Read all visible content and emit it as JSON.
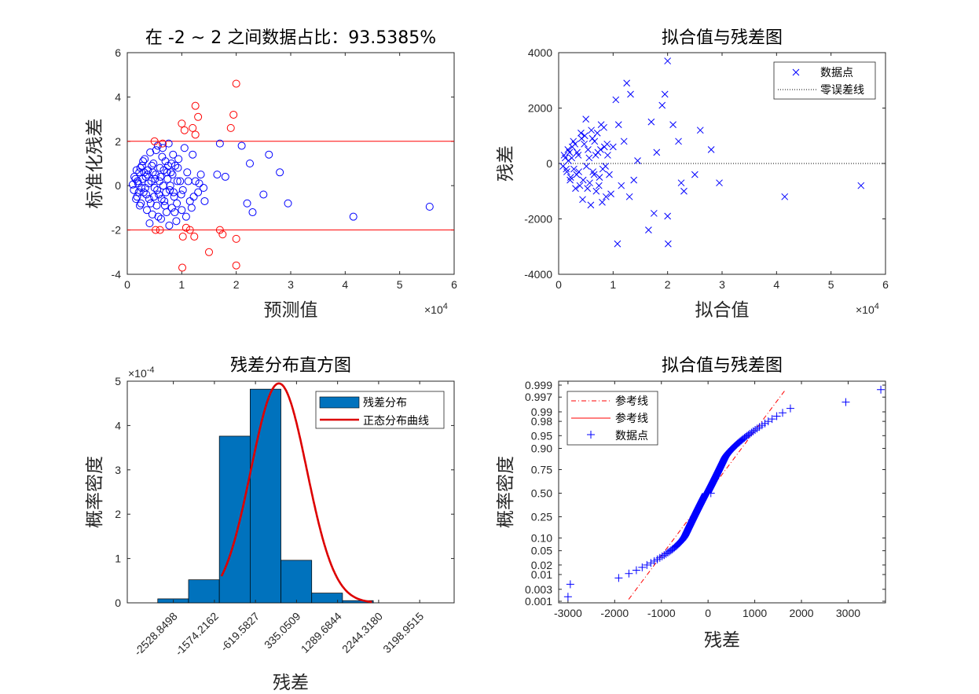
{
  "figure": {
    "background": "#ffffff",
    "axes_color": "#262626"
  },
  "chart_data": [
    {
      "id": "std_residual",
      "type": "scatter",
      "title": "在 -2 ~ 2 之间数据占比：93.5385%",
      "xlabel": "预测值",
      "ylabel": "标准化残差",
      "x_exponent": "×10^4",
      "xlim": [
        0,
        60000
      ],
      "ylim": [
        -4,
        6
      ],
      "xticks": [
        0,
        1,
        2,
        3,
        4,
        5,
        6
      ],
      "yticks": [
        -4,
        -2,
        0,
        2,
        4,
        6
      ],
      "reference_lines": [
        {
          "y": 2,
          "color": "#ff0000"
        },
        {
          "y": -2,
          "color": "#ff0000"
        }
      ],
      "series": [
        {
          "color": "#0000ff",
          "marker": "circle",
          "points": [
            [
              1200,
              -0.2
            ],
            [
              1500,
              0.3
            ],
            [
              1800,
              -0.5
            ],
            [
              2000,
              0.1
            ],
            [
              2200,
              0.6
            ],
            [
              2500,
              -0.8
            ],
            [
              2700,
              0.9
            ],
            [
              3000,
              -0.3
            ],
            [
              3200,
              1.2
            ],
            [
              3400,
              0.4
            ],
            [
              3600,
              -1.1
            ],
            [
              3800,
              0.7
            ],
            [
              4000,
              -0.6
            ],
            [
              4200,
              1.5
            ],
            [
              4400,
              0.2
            ],
            [
              4600,
              -1.3
            ],
            [
              4800,
              1.0
            ],
            [
              5000,
              -0.1
            ],
            [
              5200,
              0.5
            ],
            [
              5400,
              -0.9
            ],
            [
              5600,
              1.8
            ],
            [
              5800,
              -0.4
            ],
            [
              6000,
              0.8
            ],
            [
              6200,
              -1.5
            ],
            [
              6400,
              1.3
            ],
            [
              6600,
              0.0
            ],
            [
              6800,
              -0.7
            ],
            [
              7000,
              1.1
            ],
            [
              7200,
              -1.2
            ],
            [
              7400,
              0.3
            ],
            [
              7600,
              1.9
            ],
            [
              7800,
              -0.2
            ],
            [
              8000,
              0.6
            ],
            [
              8200,
              -1.0
            ],
            [
              8400,
              1.4
            ],
            [
              8600,
              -0.5
            ],
            [
              8800,
              0.9
            ],
            [
              9000,
              -1.6
            ],
            [
              9200,
              0.2
            ],
            [
              9400,
              1.2
            ],
            [
              1700,
              0.7
            ],
            [
              2300,
              -0.9
            ],
            [
              2900,
              1.1
            ],
            [
              3300,
              -0.1
            ],
            [
              3700,
              0.5
            ],
            [
              4100,
              -1.7
            ],
            [
              4500,
              0.9
            ],
            [
              4900,
              -0.5
            ],
            [
              5300,
              1.6
            ],
            [
              5700,
              -1.4
            ],
            [
              6100,
              0.4
            ],
            [
              6500,
              1.7
            ],
            [
              6900,
              -0.9
            ],
            [
              7300,
              0.6
            ],
            [
              7700,
              -1.8
            ],
            [
              8100,
              1.0
            ],
            [
              8500,
              -0.3
            ],
            [
              9100,
              -0.8
            ],
            [
              9700,
              0.2
            ],
            [
              10000,
              -1.1
            ],
            [
              10500,
              1.7
            ],
            [
              10800,
              -1.4
            ],
            [
              11000,
              0.6
            ],
            [
              11500,
              -0.7
            ],
            [
              12000,
              1.4
            ],
            [
              12500,
              0.2
            ],
            [
              13000,
              -0.3
            ],
            [
              13500,
              0.5
            ],
            [
              14000,
              -0.1
            ],
            [
              14200,
              -0.7
            ],
            [
              16500,
              0.5
            ],
            [
              17000,
              1.9
            ],
            [
              18000,
              0.4
            ],
            [
              21000,
              1.8
            ],
            [
              22000,
              -0.8
            ],
            [
              22500,
              1.0
            ],
            [
              23000,
              -1.2
            ],
            [
              25000,
              -0.4
            ],
            [
              26000,
              1.4
            ],
            [
              28000,
              0.6
            ],
            [
              29500,
              -0.8
            ],
            [
              41500,
              -1.4
            ],
            [
              55500,
              -0.95
            ],
            [
              1000,
              0.05
            ],
            [
              1300,
              0.4
            ],
            [
              1600,
              -0.6
            ],
            [
              1900,
              0.2
            ],
            [
              2100,
              -0.3
            ],
            [
              2400,
              0.8
            ],
            [
              2600,
              -0.1
            ],
            [
              2800,
              0.3
            ],
            [
              3100,
              0.6
            ],
            [
              3500,
              -0.4
            ],
            [
              3900,
              0.1
            ],
            [
              4300,
              -0.8
            ],
            [
              4700,
              0.6
            ],
            [
              5100,
              0.3
            ],
            [
              5500,
              -0.2
            ],
            [
              5900,
              0.2
            ],
            [
              6300,
              -0.6
            ],
            [
              6700,
              0.7
            ],
            [
              7100,
              -0.3
            ],
            [
              7500,
              0.9
            ],
            [
              7900,
              0.0
            ],
            [
              8300,
              0.5
            ],
            [
              8700,
              -1.2
            ],
            [
              9300,
              0.8
            ],
            [
              9900,
              -0.4
            ],
            [
              11200,
              0.2
            ],
            [
              12200,
              -0.5
            ],
            [
              13200,
              0.1
            ],
            [
              10200,
              -0.2
            ],
            [
              11800,
              -1.0
            ]
          ]
        },
        {
          "color": "#ff0000",
          "marker": "circle",
          "points": [
            [
              5000,
              2.0
            ],
            [
              5200,
              -2.0
            ],
            [
              6000,
              -2.0
            ],
            [
              6500,
              1.9
            ],
            [
              10000,
              2.8
            ],
            [
              10500,
              2.5
            ],
            [
              10100,
              -3.7
            ],
            [
              10200,
              -2.3
            ],
            [
              10800,
              -1.9
            ],
            [
              11500,
              -2.0
            ],
            [
              12000,
              2.6
            ],
            [
              12500,
              3.6
            ],
            [
              12500,
              2.3
            ],
            [
              13000,
              3.1
            ],
            [
              12300,
              -2.3
            ],
            [
              15000,
              -3.0
            ],
            [
              17000,
              -2.0
            ],
            [
              17500,
              -2.2
            ],
            [
              19000,
              2.6
            ],
            [
              19500,
              3.2
            ],
            [
              20000,
              4.6
            ],
            [
              20000,
              -2.4
            ],
            [
              20000,
              -3.6
            ]
          ]
        }
      ]
    },
    {
      "id": "fit_vs_resid",
      "type": "scatter",
      "title": "拟合值与残差图",
      "xlabel": "拟合值",
      "ylabel": "残差",
      "x_exponent": "×10^4",
      "xlim": [
        0,
        60000
      ],
      "ylim": [
        -4000,
        4000
      ],
      "xticks": [
        0,
        1,
        2,
        3,
        4,
        5,
        6
      ],
      "yticks": [
        -4000,
        -2000,
        0,
        2000,
        4000
      ],
      "legend": {
        "position": "top-right",
        "entries": [
          "数据点",
          "零误差线"
        ]
      },
      "series": [
        {
          "name": "数据点",
          "color": "#0000ff",
          "marker": "x",
          "points": [
            [
              800,
              -100
            ],
            [
              1200,
              200
            ],
            [
              1500,
              -300
            ],
            [
              1800,
              100
            ],
            [
              2000,
              400
            ],
            [
              2200,
              -500
            ],
            [
              2500,
              600
            ],
            [
              2800,
              -200
            ],
            [
              3000,
              700
            ],
            [
              3300,
              -400
            ],
            [
              3600,
              300
            ],
            [
              3900,
              -800
            ],
            [
              4200,
              900
            ],
            [
              4500,
              -600
            ],
            [
              4800,
              1000
            ],
            [
              5100,
              -100
            ],
            [
              5400,
              500
            ],
            [
              5700,
              -700
            ],
            [
              6000,
              1200
            ],
            [
              6300,
              -300
            ],
            [
              6600,
              800
            ],
            [
              6900,
              -1000
            ],
            [
              7200,
              400
            ],
            [
              7500,
              -500
            ],
            [
              7800,
              1400
            ],
            [
              8100,
              -200
            ],
            [
              8400,
              600
            ],
            [
              8700,
              -1200
            ],
            [
              9000,
              300
            ],
            [
              9300,
              -400
            ],
            [
              1000,
              300
            ],
            [
              1400,
              -200
            ],
            [
              1700,
              500
            ],
            [
              2100,
              -600
            ],
            [
              2400,
              200
            ],
            [
              2700,
              800
            ],
            [
              3100,
              -900
            ],
            [
              3400,
              400
            ],
            [
              3700,
              -300
            ],
            [
              4100,
              1100
            ],
            [
              4400,
              -1300
            ],
            [
              4700,
              700
            ],
            [
              5000,
              1600
            ],
            [
              5300,
              -900
            ],
            [
              5600,
              200
            ],
            [
              5900,
              -1500
            ],
            [
              6200,
              900
            ],
            [
              6500,
              -400
            ],
            [
              6800,
              300
            ],
            [
              7100,
              1100
            ],
            [
              7400,
              -800
            ],
            [
              7700,
              500
            ],
            [
              8000,
              -1400
            ],
            [
              8300,
              1300
            ],
            [
              8600,
              -100
            ],
            [
              8900,
              700
            ],
            [
              9600,
              -1100
            ],
            [
              10000,
              600
            ],
            [
              10500,
              2300
            ],
            [
              10800,
              -2900
            ],
            [
              11000,
              1400
            ],
            [
              11500,
              -800
            ],
            [
              12000,
              800
            ],
            [
              12500,
              2900
            ],
            [
              13000,
              -1200
            ],
            [
              13200,
              2500
            ],
            [
              13800,
              -600
            ],
            [
              14500,
              100
            ],
            [
              16500,
              -2400
            ],
            [
              17000,
              1500
            ],
            [
              17500,
              -1800
            ],
            [
              18000,
              400
            ],
            [
              19000,
              2100
            ],
            [
              19500,
              2500
            ],
            [
              20000,
              3700
            ],
            [
              20000,
              -1900
            ],
            [
              20100,
              -2900
            ],
            [
              21000,
              1400
            ],
            [
              22000,
              800
            ],
            [
              22500,
              -700
            ],
            [
              23000,
              -1000
            ],
            [
              25000,
              -400
            ],
            [
              26000,
              1200
            ],
            [
              28000,
              500
            ],
            [
              29500,
              -700
            ],
            [
              41500,
              -1200
            ],
            [
              55500,
              -800
            ]
          ]
        }
      ],
      "reference_lines": [
        {
          "y": 0,
          "style": "dotted",
          "color": "#000000"
        }
      ]
    },
    {
      "id": "histogram",
      "type": "bar",
      "title": "残差分布直方图",
      "xlabel": "残差",
      "ylabel": "概率密度",
      "y_exponent": "×10^-4",
      "xlim": [
        -3600,
        4000
      ],
      "ylim": [
        0,
        5
      ],
      "yticks": [
        0,
        1,
        2,
        3,
        4,
        5
      ],
      "xticks": [
        -2528.8498,
        -1574.2162,
        -619.5827,
        335.0509,
        1289.6844,
        2244.318,
        3198.9515
      ],
      "xtick_labels": [
        "-2528.8498",
        "-1574.2162",
        "-619.5827",
        "335.0509",
        "1289.6844",
        "2244.3180",
        "3198.9515"
      ],
      "bin_width": 715.97,
      "bins": [
        {
          "center": -2813.5,
          "value": 0.09
        },
        {
          "center": -2097.6,
          "value": 0.52
        },
        {
          "center": -1381.6,
          "value": 3.76
        },
        {
          "center": -665.6,
          "value": 4.82
        },
        {
          "center": 50.4,
          "value": 0.96
        },
        {
          "center": 766.4,
          "value": 0.22
        },
        {
          "center": 1482.3,
          "value": 0.05
        }
      ],
      "bins_shift_note": "",
      "curve": {
        "name": "正态分布曲线",
        "mean": -415,
        "sd": 650,
        "peak": 4.95,
        "color": "#dd0000"
      },
      "bar_color": "#0072bd",
      "legend": {
        "position": "top-right",
        "entries": [
          "残差分布",
          "正态分布曲线"
        ]
      }
    },
    {
      "id": "normprob",
      "type": "scatter",
      "title": "拟合值与残差图",
      "xlabel": "残差",
      "ylabel": "概率密度",
      "xlim": [
        -3200,
        3800
      ],
      "xticks": [
        -3000,
        -2000,
        -1000,
        0,
        1000,
        2000,
        3000
      ],
      "yticks": [
        "0.001",
        "0.003",
        "0.01",
        "0.02",
        "0.05",
        "0.10",
        "0.25",
        "0.50",
        "0.75",
        "0.90",
        "0.95",
        "0.98",
        "0.99",
        "0.997",
        "0.999"
      ],
      "legend": {
        "position": "top-left",
        "entries": [
          "参考线",
          "参考线",
          "数据点"
        ]
      },
      "reference_line": {
        "color": "#ff0000",
        "mean": 0,
        "sd": 560
      },
      "series": [
        {
          "name": "数据点",
          "color": "#0000ff",
          "marker": "plus"
        }
      ]
    }
  ]
}
